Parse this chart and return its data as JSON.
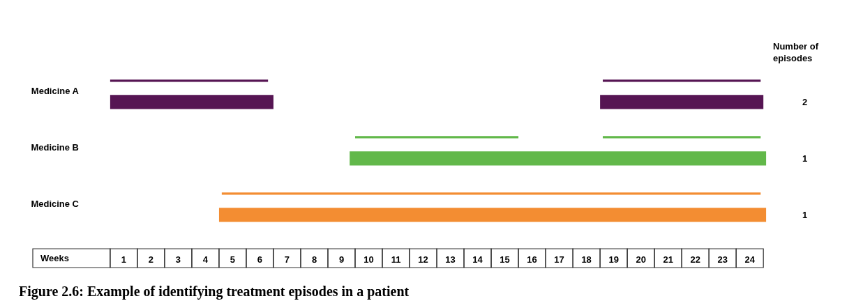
{
  "chart_data": {
    "type": "bar",
    "orientation": "horizontal",
    "title": "Figure 2.6: Example of identifying treatment episodes in a patient",
    "xlabel": "Weeks",
    "categories": [
      "Medicine A",
      "Medicine B",
      "Medicine C"
    ],
    "series": [
      {
        "colors": [
          "#561553",
          "#62b84a",
          "#f38d32"
        ],
        "base": [
          0.5,
          9.5,
          4.6
        ],
        "values": [
          5.8,
          6.0,
          19.8
        ]
      },
      {
        "colors": [
          "#561553",
          "#62b84a",
          "#f38d32"
        ],
        "base": [
          18.6,
          18.6,
          null
        ],
        "values": [
          5.8,
          5.8,
          null
        ]
      },
      {
        "colors": [
          "#561553",
          "#62b84a",
          "#f38d32"
        ],
        "base": [
          0.5,
          9.3,
          4.5
        ],
        "values": [
          6.0,
          15.3,
          20.1
        ]
      },
      {
        "colors": [
          "#561553",
          "#62b84a",
          "#f38d32"
        ],
        "base": [
          18.5,
          null,
          null
        ],
        "values": [
          6.0,
          null,
          null
        ]
      }
    ],
    "xlim": [
      0.4,
      24.7
    ],
    "xticks": [
      1,
      2,
      3,
      4,
      5,
      6,
      7,
      8,
      9,
      10,
      11,
      12,
      13,
      14,
      15,
      16,
      17,
      18,
      19,
      20,
      21,
      22,
      23,
      24
    ],
    "annotations": [
      "Number of episodes",
      "2",
      "1",
      "1"
    ]
  }
}
